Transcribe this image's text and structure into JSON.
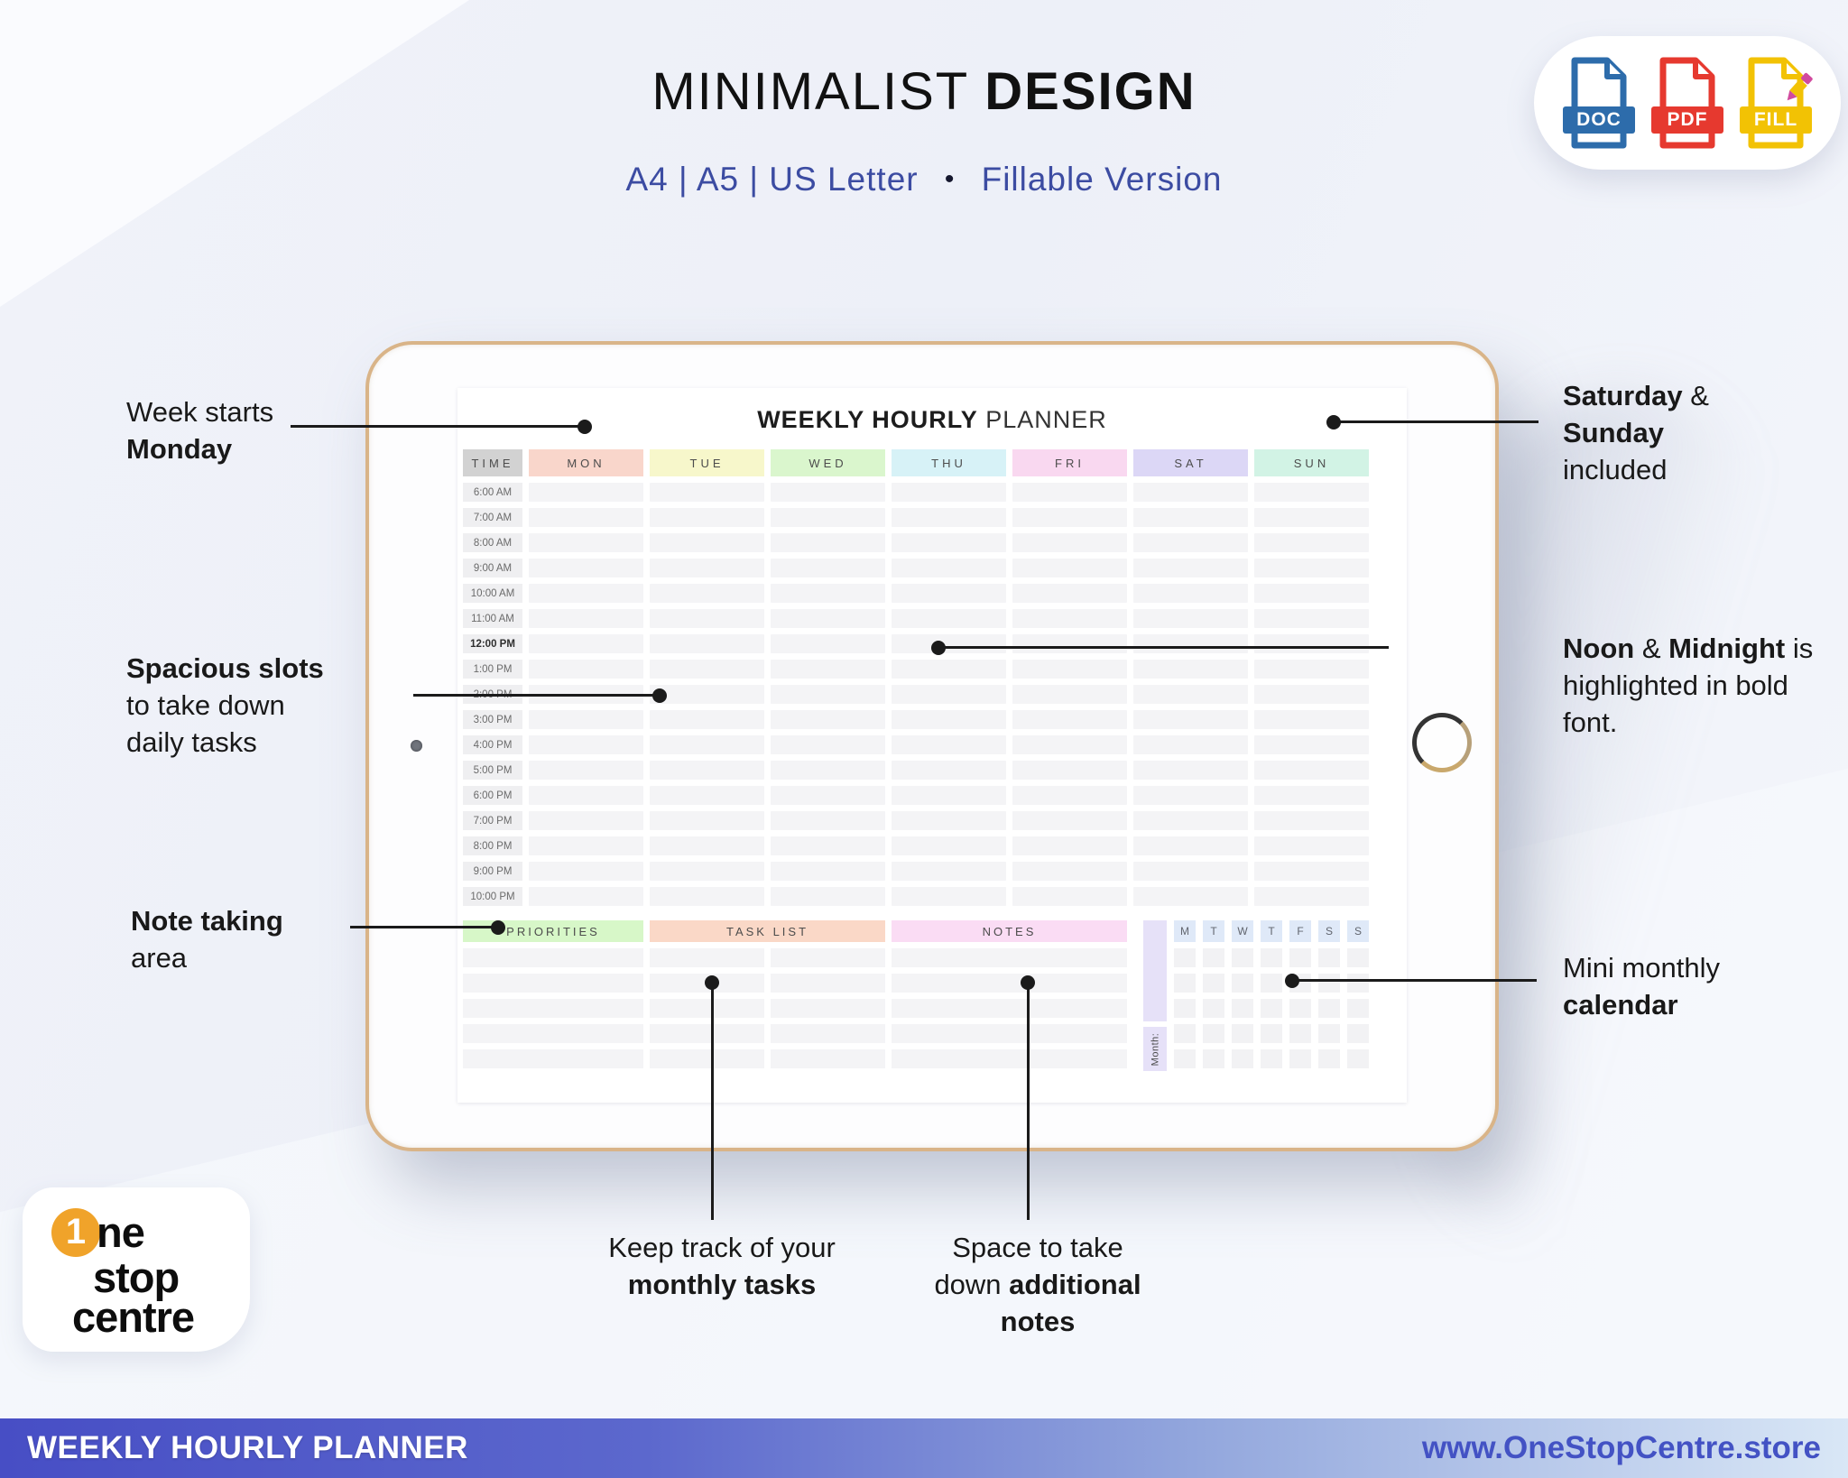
{
  "header": {
    "title_regular": "MINIMALIST ",
    "title_bold": "DESIGN",
    "sizes": "A4  |  A5  |  US Letter",
    "bullet": "•",
    "version": "Fillable Version",
    "subtitle_color": "#3c4ca2"
  },
  "format_badges": [
    {
      "label": "DOC",
      "color": "#2d6cab"
    },
    {
      "label": "PDF",
      "color": "#e6392f"
    },
    {
      "label": "FILL",
      "color": "#f2c204",
      "pencil_color": "#d14a9e"
    }
  ],
  "planner": {
    "title_bold": "WEEKLY HOURLY",
    "title_regular": " PLANNER",
    "columns": [
      {
        "label": "TIME",
        "color": "#d2d2d2"
      },
      {
        "label": "MON",
        "color": "#f9d6cb"
      },
      {
        "label": "TUE",
        "color": "#f7f7cb"
      },
      {
        "label": "WED",
        "color": "#daf6cd"
      },
      {
        "label": "THU",
        "color": "#d7f2f7"
      },
      {
        "label": "FRI",
        "color": "#f9d8f0"
      },
      {
        "label": "SAT",
        "color": "#dcd7f6"
      },
      {
        "label": "SUN",
        "color": "#d2f3e5"
      }
    ],
    "times": [
      "6:00 AM",
      "7:00 AM",
      "8:00 AM",
      "9:00 AM",
      "10:00 AM",
      "11:00 AM",
      "12:00 PM",
      "1:00 PM",
      "2:00 PM",
      "3:00 PM",
      "4:00 PM",
      "5:00 PM",
      "6:00 PM",
      "7:00 PM",
      "8:00 PM",
      "9:00 PM",
      "10:00 PM"
    ],
    "bold_time": "12:00 PM",
    "bottom_sections": [
      {
        "label": "PRIORITIES",
        "color": "#d7f7c8"
      },
      {
        "label": "TASK LIST",
        "color": "#fad8c7"
      },
      {
        "label": "NOTES",
        "color": "#fadcf4"
      }
    ],
    "note_rows": 5,
    "mini_calendar": {
      "day_headers": [
        "M",
        "T",
        "W",
        "T",
        "F",
        "S",
        "S"
      ],
      "month_label": "Month:",
      "rows": 5,
      "header_color": "#dfe9f8",
      "strip_color": "#e6e1f8"
    }
  },
  "annotations": [
    {
      "id": "week-starts",
      "lines": [
        [
          {
            "t": "Week starts",
            "b": false
          }
        ],
        [
          {
            "t": "Monday",
            "b": true
          }
        ]
      ]
    },
    {
      "id": "spacious",
      "lines": [
        [
          {
            "t": "Spacious slots",
            "b": true
          }
        ],
        [
          {
            "t": "to take down",
            "b": false
          }
        ],
        [
          {
            "t": "daily tasks",
            "b": false
          }
        ]
      ]
    },
    {
      "id": "note-taking",
      "lines": [
        [
          {
            "t": "Note taking",
            "b": true
          }
        ],
        [
          {
            "t": "area",
            "b": false
          }
        ]
      ]
    },
    {
      "id": "weekend",
      "lines": [
        [
          {
            "t": "Saturday",
            "b": true
          },
          {
            "t": " &",
            "b": false
          }
        ],
        [
          {
            "t": "Sunday",
            "b": true
          }
        ],
        [
          {
            "t": "included",
            "b": false
          }
        ]
      ]
    },
    {
      "id": "noon",
      "lines": [
        [
          {
            "t": "Noon",
            "b": true
          },
          {
            "t": " & ",
            "b": false
          },
          {
            "t": "Midnight",
            "b": true
          },
          {
            "t": " is",
            "b": false
          }
        ],
        [
          {
            "t": "highlighted in bold",
            "b": false
          }
        ],
        [
          {
            "t": "font.",
            "b": false
          }
        ]
      ]
    },
    {
      "id": "mini-cal",
      "lines": [
        [
          {
            "t": "Mini monthly",
            "b": false
          }
        ],
        [
          {
            "t": "calendar",
            "b": true
          }
        ]
      ]
    },
    {
      "id": "task-track",
      "lines": [
        [
          {
            "t": "Keep track of your",
            "b": false
          }
        ],
        [
          {
            "t": "monthly tasks",
            "b": true
          }
        ]
      ]
    },
    {
      "id": "notes-space",
      "lines": [
        [
          {
            "t": "Space to take",
            "b": false
          }
        ],
        [
          {
            "t": "down ",
            "b": false
          },
          {
            "t": "additional",
            "b": true
          }
        ],
        [
          {
            "t": "notes",
            "b": true
          }
        ]
      ]
    }
  ],
  "logo": {
    "digit": "1",
    "one_rest": "ne",
    "stop": "stop",
    "centre": "centre",
    "circle_color": "#f0a32a"
  },
  "footer": {
    "left": "WEEKLY HOURLY PLANNER",
    "right": "www.OneStopCentre.store",
    "gradient_start": "#474ec5",
    "gradient_end": "#d9e7f6"
  }
}
